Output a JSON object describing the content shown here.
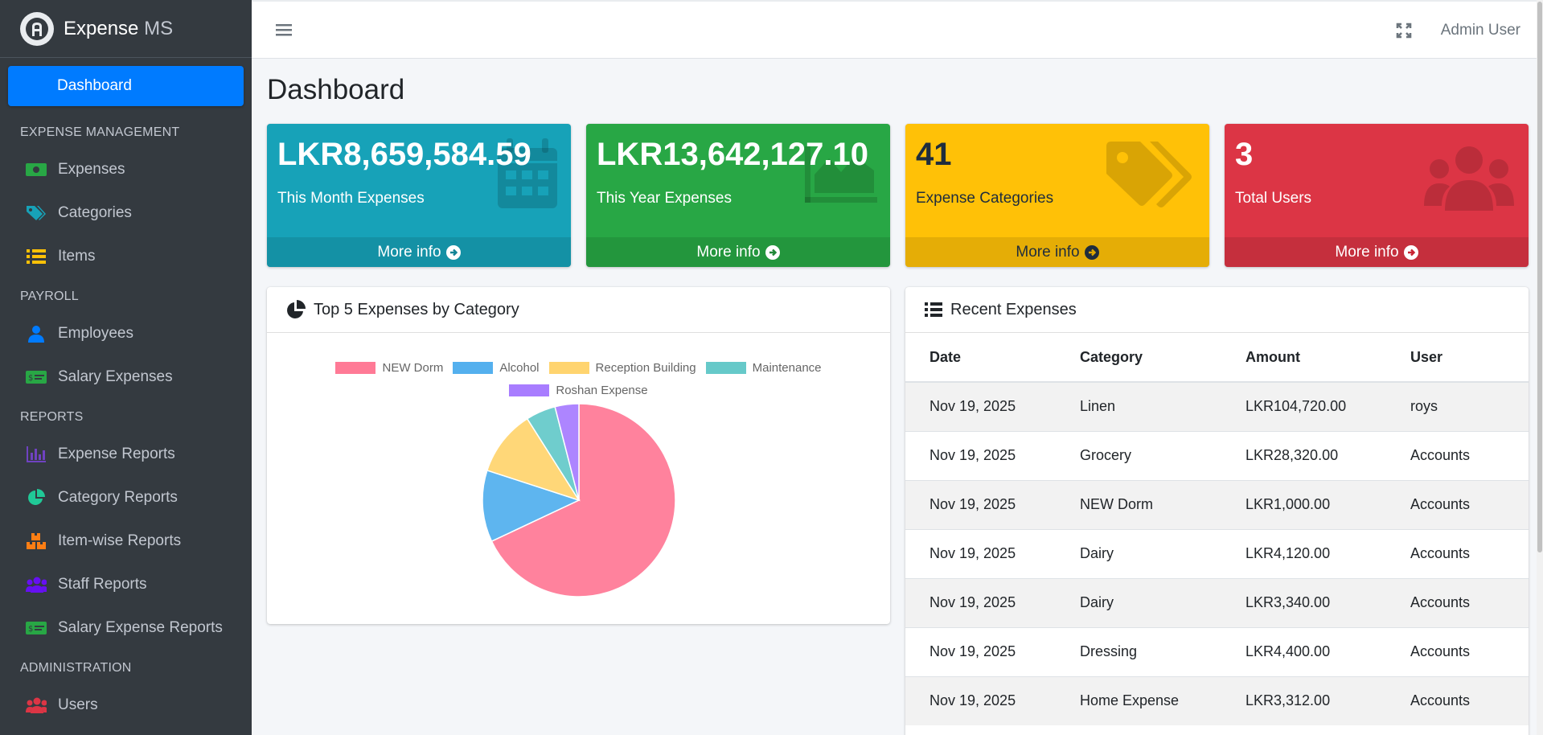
{
  "brand": {
    "name": "Expense",
    "suffix": " MS"
  },
  "sidebar": {
    "active": "Dashboard",
    "sections": [
      {
        "header": "EXPENSE MANAGEMENT",
        "items": [
          {
            "label": "Expenses",
            "icon": "money-bill-icon",
            "color": "#28a745"
          },
          {
            "label": "Categories",
            "icon": "tags-icon",
            "color": "#17a2b8"
          },
          {
            "label": "Items",
            "icon": "list-icon",
            "color": "#ffc107"
          }
        ]
      },
      {
        "header": "PAYROLL",
        "items": [
          {
            "label": "Employees",
            "icon": "user-tie-icon",
            "color": "#007bff"
          },
          {
            "label": "Salary Expenses",
            "icon": "money-check-icon",
            "color": "#28a745"
          }
        ]
      },
      {
        "header": "REPORTS",
        "items": [
          {
            "label": "Expense Reports",
            "icon": "chart-bar-icon",
            "color": "#6f42c1"
          },
          {
            "label": "Category Reports",
            "icon": "chart-pie-icon",
            "color": "#20c997"
          },
          {
            "label": "Item-wise Reports",
            "icon": "boxes-icon",
            "color": "#fd7e14"
          },
          {
            "label": "Staff Reports",
            "icon": "users-icon",
            "color": "#6610f2"
          },
          {
            "label": "Salary Expense Reports",
            "icon": "money-check-icon",
            "color": "#28a745"
          }
        ]
      },
      {
        "header": "ADMINISTRATION",
        "items": [
          {
            "label": "Users",
            "icon": "users-cog-icon",
            "color": "#dc3545"
          }
        ]
      }
    ]
  },
  "topbar": {
    "user": "Admin User"
  },
  "page": {
    "title": "Dashboard"
  },
  "stats": [
    {
      "value": "LKR8,659,584.59",
      "label": "This Month Expenses",
      "footer": "More info",
      "color": "#17a2b8",
      "icon": "calendar-icon"
    },
    {
      "value": "LKR13,642,127.10",
      "label": "This Year Expenses",
      "footer": "More info",
      "color": "#28a745",
      "icon": "chart-area-icon"
    },
    {
      "value": "41",
      "label": "Expense Categories",
      "footer": "More info",
      "color": "#ffc107",
      "icon": "tags-icon"
    },
    {
      "value": "3",
      "label": "Total Users",
      "footer": "More info",
      "color": "#dc3545",
      "icon": "users-icon"
    }
  ],
  "pie_card": {
    "title": "Top 5 Expenses by Category"
  },
  "chart_data": {
    "type": "pie",
    "categories": [
      "NEW Dorm",
      "Alcohol",
      "Reception Building",
      "Maintenance",
      "Roshan Expense"
    ],
    "values": [
      68,
      12,
      11,
      5,
      4
    ],
    "colors": [
      "#ff6384",
      "#36a2eb",
      "#ffcd56",
      "#4bc0c0",
      "#9966ff"
    ],
    "legend": "top"
  },
  "recent": {
    "title": "Recent Expenses",
    "columns": [
      "Date",
      "Category",
      "Amount",
      "User"
    ],
    "rows": [
      [
        "Nov 19, 2025",
        "Linen",
        "LKR104,720.00",
        "roys"
      ],
      [
        "Nov 19, 2025",
        "Grocery",
        "LKR28,320.00",
        "Accounts"
      ],
      [
        "Nov 19, 2025",
        "NEW Dorm",
        "LKR1,000.00",
        "Accounts"
      ],
      [
        "Nov 19, 2025",
        "Dairy",
        "LKR4,120.00",
        "Accounts"
      ],
      [
        "Nov 19, 2025",
        "Dairy",
        "LKR3,340.00",
        "Accounts"
      ],
      [
        "Nov 19, 2025",
        "Dressing",
        "LKR4,400.00",
        "Accounts"
      ],
      [
        "Nov 19, 2025",
        "Home Expense",
        "LKR3,312.00",
        "Accounts"
      ]
    ]
  }
}
